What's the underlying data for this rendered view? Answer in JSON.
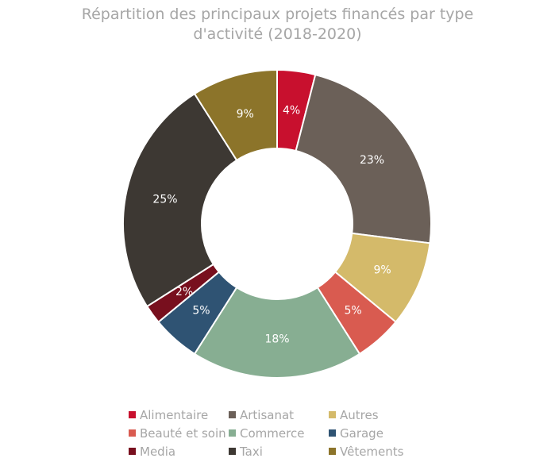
{
  "chart_data": {
    "type": "pie",
    "donut": true,
    "title": "Répartition des principaux projets financés par type d'activité (2018-2020)",
    "title_lines": [
      "Répartition des principaux projets financés par type",
      "d'activité (2018-2020)"
    ],
    "legend_position": "bottom",
    "slices": [
      {
        "label": "Alimentaire",
        "value": 4,
        "text": "4%",
        "color": "#C8102E"
      },
      {
        "label": "Artisanat",
        "value": 23,
        "text": "23%",
        "color": "#6B6058"
      },
      {
        "label": "Autres",
        "value": 9,
        "text": "9%",
        "color": "#D4BA6A"
      },
      {
        "label": "Beauté et soin",
        "value": 5,
        "text": "5%",
        "color": "#D95B50"
      },
      {
        "label": "Commerce",
        "value": 18,
        "text": "18%",
        "color": "#87AE92"
      },
      {
        "label": "Garage",
        "value": 5,
        "text": "5%",
        "color": "#2F5373"
      },
      {
        "label": "Media",
        "value": 2,
        "text": "2%",
        "color": "#780F1E"
      },
      {
        "label": "Taxi",
        "value": 25,
        "text": "25%",
        "color": "#3D3833"
      },
      {
        "label": "Vêtements",
        "value": 9,
        "text": "9%",
        "color": "#8C742A"
      }
    ]
  }
}
